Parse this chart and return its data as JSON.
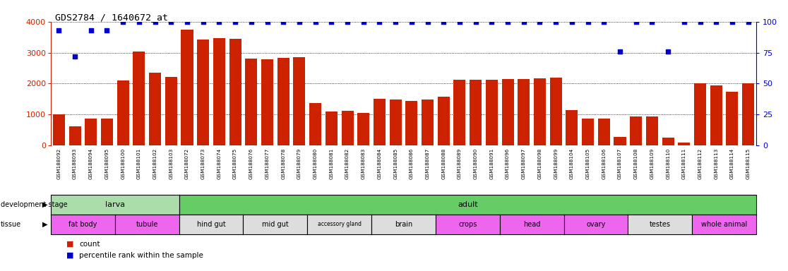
{
  "title": "GDS2784 / 1640672_at",
  "samples": [
    "GSM188092",
    "GSM188093",
    "GSM188094",
    "GSM188095",
    "GSM188100",
    "GSM188101",
    "GSM188102",
    "GSM188103",
    "GSM188072",
    "GSM188073",
    "GSM188074",
    "GSM188075",
    "GSM188076",
    "GSM188077",
    "GSM188078",
    "GSM188079",
    "GSM188080",
    "GSM188081",
    "GSM188082",
    "GSM188083",
    "GSM188084",
    "GSM188085",
    "GSM188086",
    "GSM188087",
    "GSM188088",
    "GSM188089",
    "GSM188090",
    "GSM188091",
    "GSM188096",
    "GSM188097",
    "GSM188098",
    "GSM188099",
    "GSM188104",
    "GSM188105",
    "GSM188106",
    "GSM188107",
    "GSM188108",
    "GSM188109",
    "GSM188110",
    "GSM188111",
    "GSM188112",
    "GSM188113",
    "GSM188114",
    "GSM188115"
  ],
  "counts": [
    1000,
    620,
    870,
    870,
    2100,
    3030,
    2350,
    2210,
    3750,
    3430,
    3480,
    3460,
    2820,
    2780,
    2830,
    2860,
    1360,
    1090,
    1130,
    1040,
    1500,
    1490,
    1440,
    1490,
    1580,
    2130,
    2120,
    2130,
    2150,
    2140,
    2170,
    2200,
    1140,
    860,
    870,
    270,
    930,
    930,
    250,
    100,
    2000,
    1950,
    1740,
    2020
  ],
  "percentile": [
    93,
    72,
    93,
    93,
    100,
    100,
    100,
    100,
    100,
    100,
    100,
    100,
    100,
    100,
    100,
    100,
    100,
    100,
    100,
    100,
    100,
    100,
    100,
    100,
    100,
    100,
    100,
    100,
    100,
    100,
    100,
    100,
    100,
    100,
    100,
    76,
    100,
    100,
    76,
    100,
    100,
    100,
    100,
    100
  ],
  "dev_stages": [
    {
      "label": "larva",
      "start": 0,
      "end": 8,
      "color": "#aaddaa"
    },
    {
      "label": "adult",
      "start": 8,
      "end": 44,
      "color": "#66cc66"
    }
  ],
  "tissues": [
    {
      "label": "fat body",
      "start": 0,
      "end": 4,
      "color": "#ee66ee"
    },
    {
      "label": "tubule",
      "start": 4,
      "end": 8,
      "color": "#ee66ee"
    },
    {
      "label": "hind gut",
      "start": 8,
      "end": 12,
      "color": "#dddddd"
    },
    {
      "label": "mid gut",
      "start": 12,
      "end": 16,
      "color": "#dddddd"
    },
    {
      "label": "accessory gland",
      "start": 16,
      "end": 20,
      "color": "#dddddd"
    },
    {
      "label": "brain",
      "start": 20,
      "end": 24,
      "color": "#dddddd"
    },
    {
      "label": "crops",
      "start": 24,
      "end": 28,
      "color": "#ee66ee"
    },
    {
      "label": "head",
      "start": 28,
      "end": 32,
      "color": "#ee66ee"
    },
    {
      "label": "ovary",
      "start": 32,
      "end": 36,
      "color": "#ee66ee"
    },
    {
      "label": "testes",
      "start": 36,
      "end": 40,
      "color": "#dddddd"
    },
    {
      "label": "whole animal",
      "start": 40,
      "end": 44,
      "color": "#ee66ee"
    }
  ],
  "bar_color": "#cc2200",
  "dot_color": "#0000cc",
  "ylim_left": [
    0,
    4000
  ],
  "ylim_right": [
    0,
    100
  ],
  "yticks_left": [
    0,
    1000,
    2000,
    3000,
    4000
  ],
  "yticks_right": [
    0,
    25,
    50,
    75,
    100
  ],
  "xtick_bg": "#d8d8d8",
  "legend_count_color": "#cc2200",
  "legend_pct_color": "#0000cc"
}
